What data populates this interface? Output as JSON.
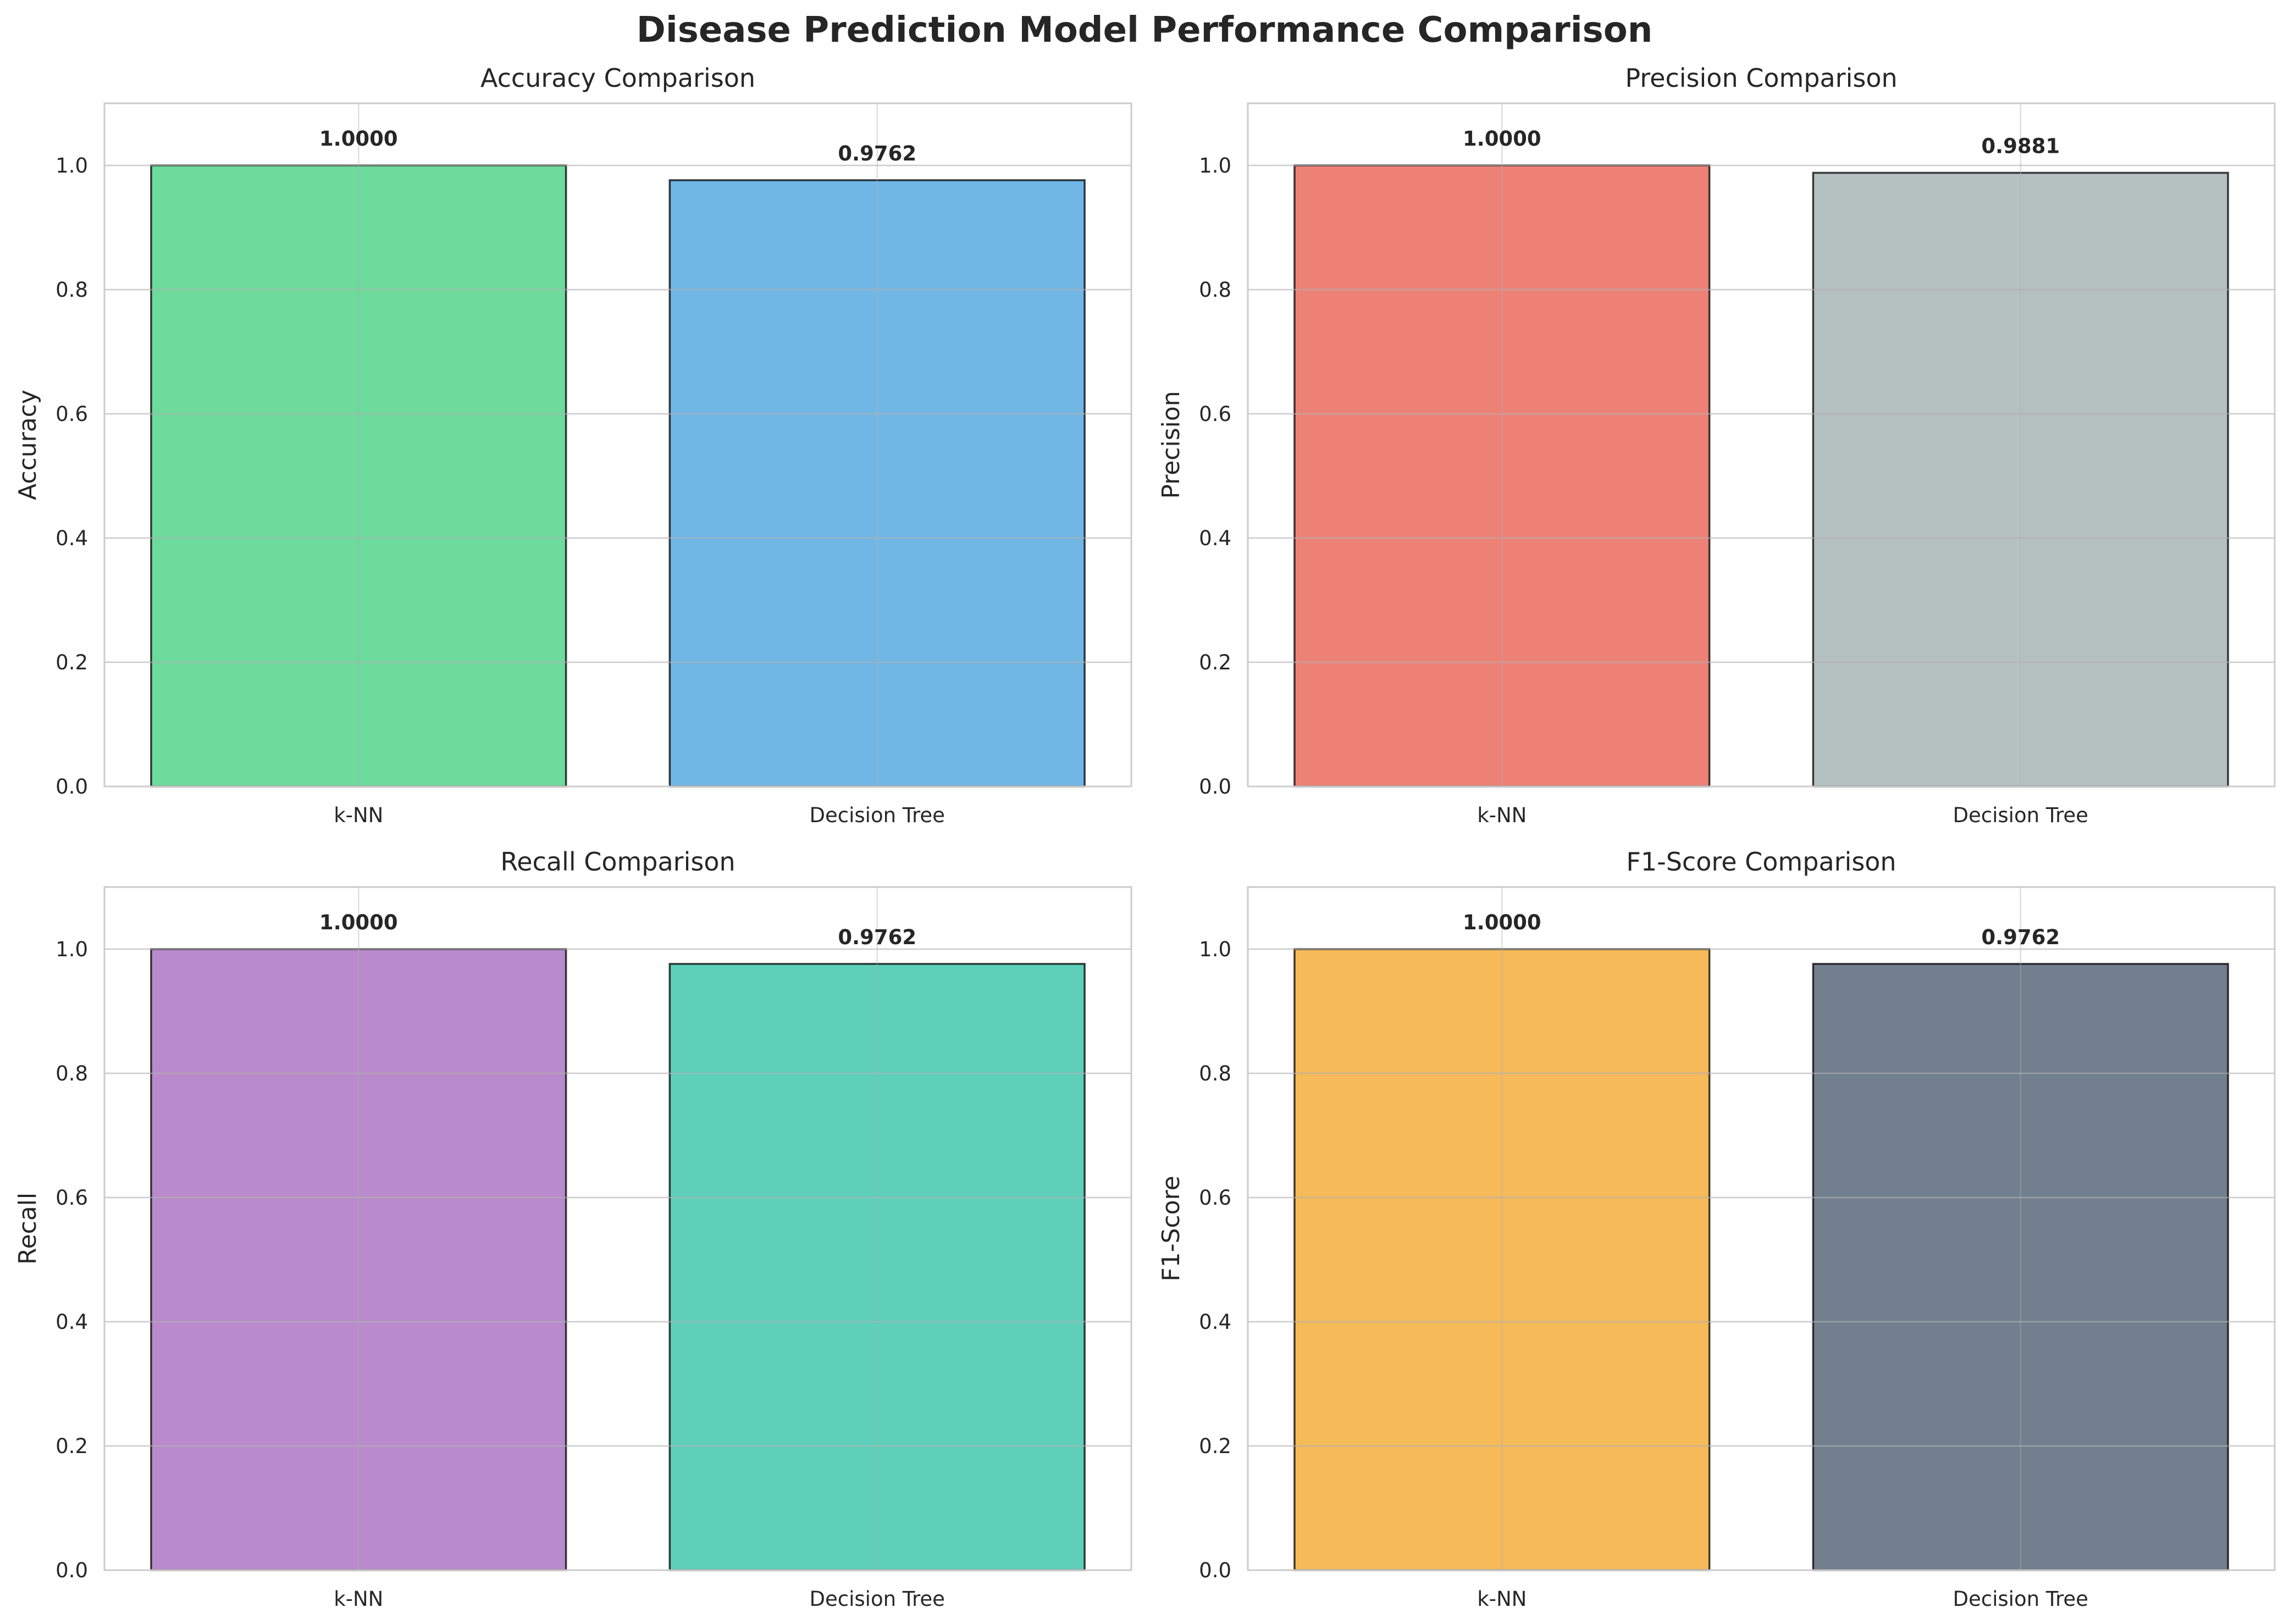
{
  "figure": {
    "title": "Disease Prediction Model Performance Comparison"
  },
  "chart_data": [
    {
      "type": "bar",
      "title": "Accuracy Comparison",
      "xlabel": "",
      "ylabel": "Accuracy",
      "categories": [
        "k-NN",
        "Decision Tree"
      ],
      "values": [
        1.0,
        0.9762
      ],
      "value_labels": [
        "1.0000",
        "0.9762"
      ],
      "colors": [
        "#2ecc71",
        "#3498db"
      ],
      "ylim": [
        0,
        1.1
      ],
      "yticks": [
        "0.0",
        "0.2",
        "0.4",
        "0.6",
        "0.8",
        "1.0"
      ],
      "grid": true
    },
    {
      "type": "bar",
      "title": "Precision Comparison",
      "xlabel": "",
      "ylabel": "Precision",
      "categories": [
        "k-NN",
        "Decision Tree"
      ],
      "values": [
        1.0,
        0.9881
      ],
      "value_labels": [
        "1.0000",
        "0.9881"
      ],
      "colors": [
        "#e74c3c",
        "#95a5a6"
      ],
      "ylim": [
        0,
        1.1
      ],
      "yticks": [
        "0.0",
        "0.2",
        "0.4",
        "0.6",
        "0.8",
        "1.0"
      ],
      "grid": true
    },
    {
      "type": "bar",
      "title": "Recall Comparison",
      "xlabel": "",
      "ylabel": "Recall",
      "categories": [
        "k-NN",
        "Decision Tree"
      ],
      "values": [
        1.0,
        0.9762
      ],
      "value_labels": [
        "1.0000",
        "0.9762"
      ],
      "colors": [
        "#9b59b6",
        "#1abc9c"
      ],
      "ylim": [
        0,
        1.1
      ],
      "yticks": [
        "0.0",
        "0.2",
        "0.4",
        "0.6",
        "0.8",
        "1.0"
      ],
      "grid": true
    },
    {
      "type": "bar",
      "title": "F1-Score Comparison",
      "xlabel": "",
      "ylabel": "F1-Score",
      "categories": [
        "k-NN",
        "Decision Tree"
      ],
      "values": [
        1.0,
        0.9762
      ],
      "value_labels": [
        "1.0000",
        "0.9762"
      ],
      "colors": [
        "#f39c12",
        "#34495e"
      ],
      "ylim": [
        0,
        1.1
      ],
      "yticks": [
        "0.0",
        "0.2",
        "0.4",
        "0.6",
        "0.8",
        "1.0"
      ],
      "grid": true
    }
  ]
}
